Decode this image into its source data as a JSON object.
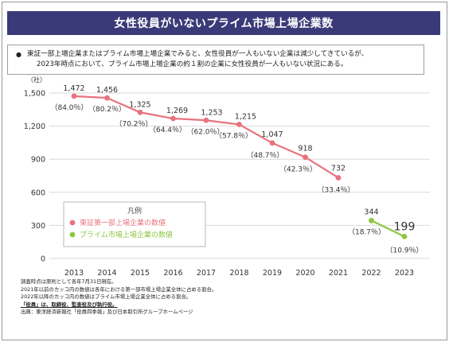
{
  "title": "女性役員がいないプライム市場上場企業数",
  "note": {
    "line1": "東証一部上場企業またはプライム市場上場企業でみると、女性役員が一人もいない企業は減少してきているが、",
    "line2": "2023年時点において、プライム市場上場企業の約１割の企業に女性役員が一人もいない状況にある。"
  },
  "legend": {
    "title": "凡例",
    "items": [
      "東証第一部上場企業の数値",
      "プライム市場上場企業の数値"
    ]
  },
  "footnotes": [
    "調査時点は原則として各年7月31日現在。",
    "2021年以前のカッコ内の数値は各年における第一部市場上場企業全体に占める割合。",
    "2022年以降のカッコ内の数値はプライム市場上場企業全体に占める割合。",
    "「役員」は、取締役、監査役及び執行役。",
    "出典：東洋経済新報社「役員四季報」及び日本取引所グループホームページ"
  ],
  "colors": {
    "banner": "#3b3a78",
    "tse1": "#e8727e",
    "prime": "#8cc63f",
    "grid": "#d9d9d9"
  },
  "chart_data": {
    "type": "line",
    "ylabel": "（社）",
    "ylim": [
      0,
      1500
    ],
    "yticks": [
      "0",
      "300",
      "600",
      "900",
      "1,200",
      "1,500"
    ],
    "ytick_values": [
      0,
      300,
      600,
      900,
      1200,
      1500
    ],
    "categories": [
      "2013",
      "2014",
      "2015",
      "2016",
      "2017",
      "2018",
      "2019",
      "2020",
      "2021",
      "2022",
      "2023"
    ],
    "grid": "horizontal",
    "legend_position": "bottom-left",
    "series": [
      {
        "name": "東証第一部上場企業の数値",
        "color": "#e8727e",
        "x": [
          "2013",
          "2014",
          "2015",
          "2016",
          "2017",
          "2018",
          "2019",
          "2020",
          "2021"
        ],
        "values": [
          1472,
          1456,
          1325,
          1269,
          1253,
          1215,
          1047,
          918,
          732
        ],
        "value_labels": [
          "1,472",
          "1,456",
          "1,325",
          "1,269",
          "1,253",
          "1,215",
          "1,047",
          "918",
          "732"
        ],
        "pct_labels": [
          "（84.0％）",
          "（80.2％）",
          "（70.2％）",
          "（64.4％）",
          "（62.0％）",
          "（57.8％）",
          "（48.7％）",
          "（42.3％）",
          "（33.4％）"
        ]
      },
      {
        "name": "プライム市場上場企業の数値",
        "color": "#8cc63f",
        "x": [
          "2022",
          "2023"
        ],
        "values": [
          344,
          199
        ],
        "value_labels": [
          "344",
          "199"
        ],
        "pct_labels": [
          "（18.7％）",
          "（10.9％）"
        ]
      }
    ]
  }
}
